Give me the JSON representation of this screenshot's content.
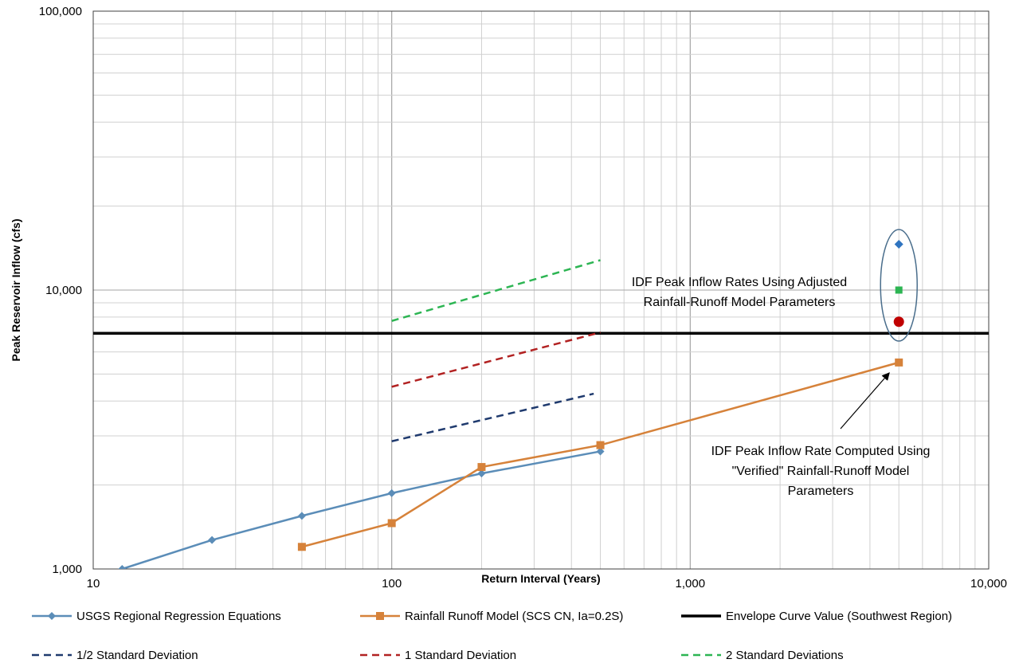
{
  "chart_data": {
    "type": "line",
    "xscale": "log",
    "yscale": "log",
    "xlabel": "Return Interval (Years)",
    "ylabel": "Peak Reservoir Inflow (cfs)",
    "xlim": [
      10,
      10000
    ],
    "ylim": [
      1000,
      100000
    ],
    "x_ticks": [
      {
        "value": 10,
        "label": "10"
      },
      {
        "value": 100,
        "label": "100"
      },
      {
        "value": 1000,
        "label": "1,000"
      },
      {
        "value": 10000,
        "label": "10,000"
      }
    ],
    "y_ticks": [
      {
        "value": 1000,
        "label": "1,000"
      },
      {
        "value": 10000,
        "label": "10,000"
      },
      {
        "value": 100000,
        "label": "100,000"
      }
    ],
    "grid": true,
    "legend_position": "bottom",
    "series": [
      {
        "key": "usgs",
        "name": "USGS Regional Regression Equations",
        "color": "#5B8DB8",
        "style": "solid",
        "marker": "diamond",
        "x": [
          12.5,
          25,
          50,
          100,
          200,
          500
        ],
        "y": [
          1000,
          1270,
          1550,
          1870,
          2200,
          2640
        ]
      },
      {
        "key": "rainfall",
        "name": "Rainfall Runoff Model (SCS CN, Ia=0.2S)",
        "color": "#D6823A",
        "style": "solid",
        "marker": "square",
        "x": [
          50,
          100,
          200,
          500,
          5000
        ],
        "y": [
          1200,
          1460,
          2320,
          2780,
          5500
        ]
      },
      {
        "key": "envelope",
        "name": "Envelope Curve Value (Southwest Region)",
        "color": "#000000",
        "style": "solid-thick",
        "marker": "none",
        "x": [
          10,
          10000
        ],
        "y": [
          7000,
          7000
        ]
      },
      {
        "key": "half_sd",
        "name": "1/2 Standard Deviation",
        "color": "#1F3A6E",
        "style": "dashed",
        "marker": "none",
        "x": [
          100,
          475
        ],
        "y": [
          2870,
          4250
        ]
      },
      {
        "key": "one_sd",
        "name": "1 Standard Deviation",
        "color": "#B22222",
        "style": "dashed",
        "marker": "none",
        "x": [
          100,
          500
        ],
        "y": [
          4500,
          7050
        ]
      },
      {
        "key": "two_sd",
        "name": "2 Standard Deviations",
        "color": "#2DB553",
        "style": "dashed",
        "marker": "none",
        "x": [
          100,
          500
        ],
        "y": [
          7750,
          12800
        ]
      }
    ],
    "idf_points": [
      {
        "x": 5000,
        "y": 14600,
        "shape": "diamond",
        "color": "#2F74C0"
      },
      {
        "x": 5000,
        "y": 10000,
        "shape": "square",
        "color": "#2DB553"
      },
      {
        "x": 5000,
        "y": 7700,
        "shape": "circle",
        "color": "#C00000"
      }
    ],
    "ellipse": {
      "cx": 5000,
      "cy": 10400,
      "color": "#4A6E8C"
    },
    "annotations": [
      {
        "key": "adjusted",
        "lines": [
          "IDF Peak  Inflow Rates Using Adjusted",
          "Rainfall-Runoff Model Parameters"
        ]
      },
      {
        "key": "verified",
        "lines": [
          "IDF Peak  Inflow Rate Computed Using",
          "\"Verified\" Rainfall-Runoff Model",
          "Parameters"
        ],
        "arrow_to": {
          "x": 5000,
          "y": 5500
        }
      }
    ]
  }
}
